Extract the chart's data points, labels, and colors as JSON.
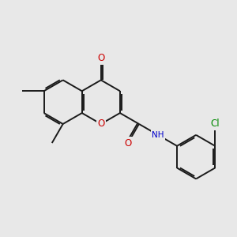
{
  "background_color": "#e8e8e8",
  "bond_color": "#1a1a1a",
  "atom_colors": {
    "O": "#cc0000",
    "N": "#0000cc",
    "Cl": "#008800",
    "C": "#1a1a1a"
  },
  "figsize": [
    3.0,
    3.0
  ],
  "dpi": 100,
  "bond_lw": 1.4,
  "font_size": 7.5
}
